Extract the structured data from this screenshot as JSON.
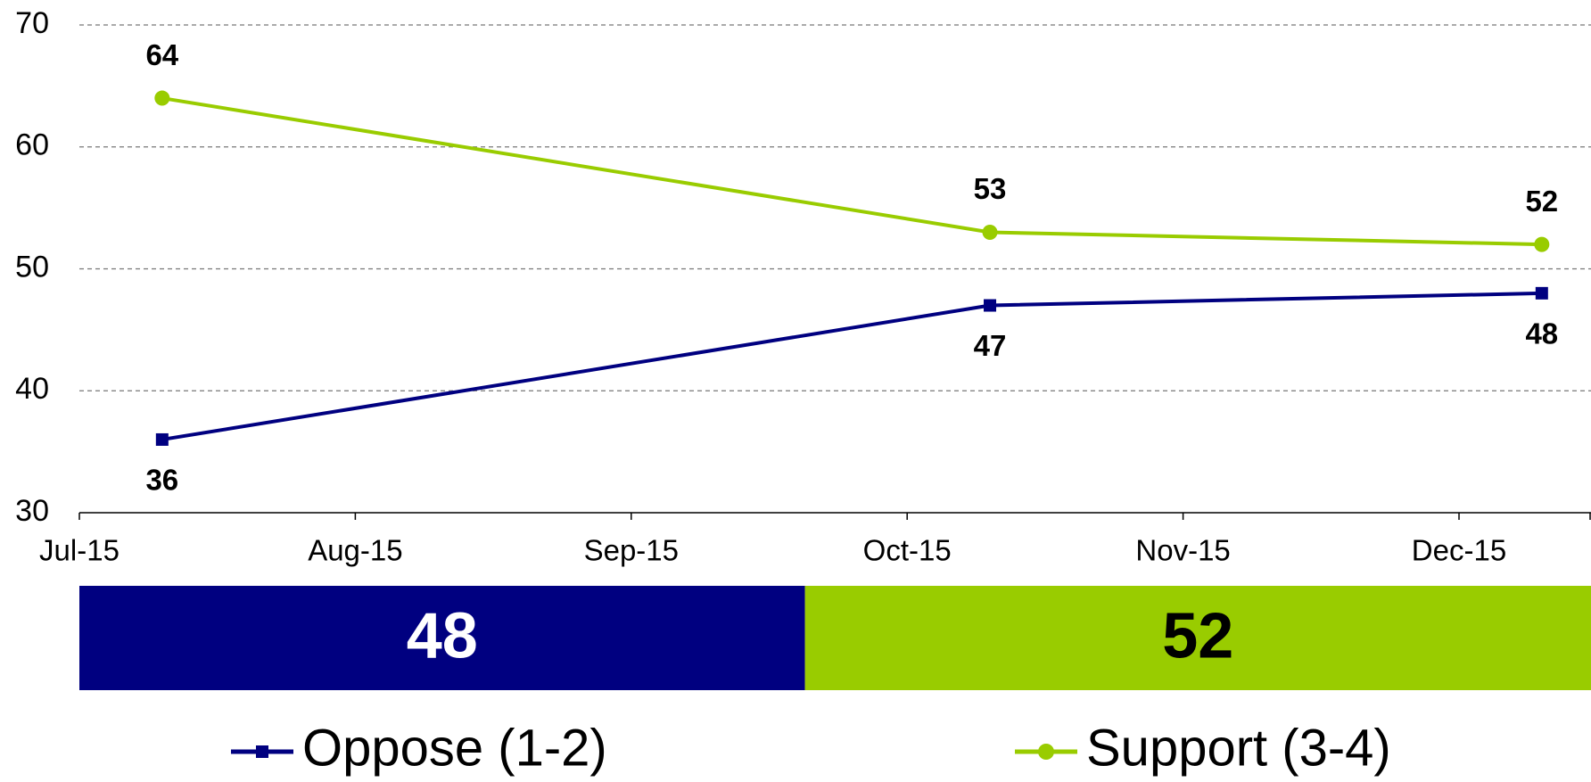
{
  "chart_data": [
    {
      "type": "line",
      "x": [
        "2015-07",
        "2015-10",
        "2015-12"
      ],
      "series": [
        {
          "name": "Oppose (1-2)",
          "color": "#000080",
          "marker": "square",
          "values": [
            36,
            47,
            48
          ],
          "label_side": "below"
        },
        {
          "name": "Support (3-4)",
          "color": "#99cc00",
          "marker": "circle",
          "values": [
            64,
            53,
            52
          ],
          "label_side": "above"
        }
      ],
      "xticks": [
        {
          "value": "2015-07",
          "label": "Jul-15"
        },
        {
          "value": "2015-08",
          "label": "Aug-15"
        },
        {
          "value": "2015-09",
          "label": "Sep-15"
        },
        {
          "value": "2015-10",
          "label": "Oct-15"
        },
        {
          "value": "2015-11",
          "label": "Nov-15"
        },
        {
          "value": "2015-12",
          "label": "Dec-15"
        }
      ],
      "ylim": [
        30,
        70
      ],
      "yticks": [
        30,
        40,
        50,
        60,
        70
      ],
      "grid": true,
      "legend": "bottom"
    },
    {
      "type": "stacked-bar",
      "series": [
        {
          "name": "Oppose (1-2)",
          "color": "#000080",
          "label_color": "#ffffff",
          "values": [
            48
          ]
        },
        {
          "name": "Support (3-4)",
          "color": "#99cc00",
          "label_color": "#000000",
          "values": [
            52
          ]
        }
      ],
      "xlim": [
        0,
        100
      ]
    }
  ]
}
